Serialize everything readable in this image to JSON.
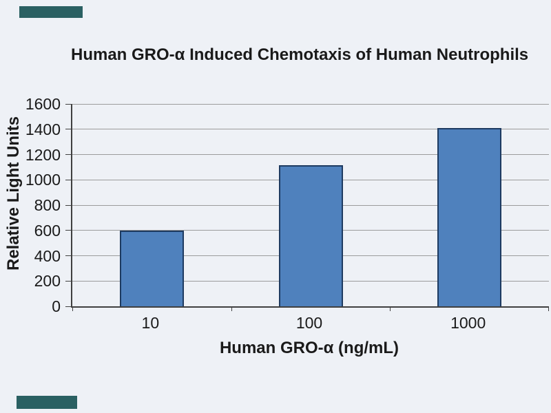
{
  "chart_data": {
    "type": "bar",
    "title": "Human GRO-α Induced Chemotaxis of Human Neutrophils",
    "xlabel": "Human GRO-α (ng/mL)",
    "ylabel": "Relative Light Units",
    "categories": [
      "10",
      "100",
      "1000"
    ],
    "values": [
      600,
      1115,
      1410
    ],
    "ylim": [
      0,
      1600
    ],
    "yticks": [
      0,
      200,
      400,
      600,
      800,
      1000,
      1200,
      1400,
      1600
    ],
    "grid": "horizontal-only",
    "legend_position": "none",
    "colors": {
      "bar_fill": "#4f81bd",
      "bar_border": "#1d3a60",
      "gridline": "#9b9b9b",
      "axis_line": "#3f3f3f",
      "text": "#1a1a1a",
      "background": "#eef1f6"
    }
  },
  "decorations": {
    "watermark_box_color": "#2a6062"
  }
}
